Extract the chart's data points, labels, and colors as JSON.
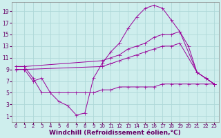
{
  "background_color": "#ceeeed",
  "line_color": "#990099",
  "grid_color": "#aed8d8",
  "xlabel": "Windchill (Refroidissement éolien,°C)",
  "xlabel_fontsize": 6.5,
  "xtick_fontsize": 5.0,
  "ytick_fontsize": 5.5,
  "xlabel_color": "#660066",
  "tick_color": "#660066",
  "xlim": [
    -0.5,
    23.5
  ],
  "ylim": [
    0,
    20.5
  ],
  "yticks": [
    1,
    3,
    5,
    7,
    9,
    11,
    13,
    15,
    17,
    19
  ],
  "xticks": [
    0,
    1,
    2,
    3,
    4,
    5,
    6,
    7,
    8,
    9,
    10,
    11,
    12,
    13,
    14,
    15,
    16,
    17,
    18,
    19,
    20,
    21,
    22,
    23
  ],
  "series": [
    {
      "x": [
        0,
        1,
        2,
        3,
        4,
        5,
        6,
        7,
        8,
        9,
        10,
        11,
        12,
        13,
        14,
        15,
        16,
        17,
        18,
        19,
        20,
        21,
        22,
        23
      ],
      "y": [
        9.5,
        9.5,
        7.5,
        5.0,
        5.0,
        3.5,
        2.8,
        1.2,
        1.5,
        7.5,
        10.0,
        12.0,
        13.5,
        16.0,
        18.0,
        19.5,
        20.0,
        19.5,
        17.5,
        15.5,
        13.0,
        null,
        null,
        null
      ]
    },
    {
      "x": [
        0,
        1,
        2,
        3,
        4,
        5,
        6,
        7,
        8,
        9,
        10,
        11,
        12,
        13,
        14,
        15,
        16,
        17,
        18,
        19,
        20,
        21,
        22,
        23
      ],
      "y": [
        9.5,
        9.5,
        null,
        null,
        null,
        null,
        null,
        null,
        null,
        null,
        10.5,
        11.0,
        11.5,
        12.5,
        13.0,
        13.5,
        14.5,
        15.0,
        15.0,
        15.5,
        null,
        null,
        null,
        null
      ]
    },
    {
      "x": [
        0,
        1,
        2,
        3,
        4,
        5,
        6,
        7,
        8,
        9,
        10,
        11,
        12,
        13,
        14,
        15,
        16,
        17,
        18,
        19,
        20,
        21,
        22,
        23
      ],
      "y": [
        9.0,
        9.0,
        null,
        null,
        null,
        null,
        null,
        null,
        null,
        null,
        9.5,
        10.0,
        10.5,
        11.0,
        11.5,
        12.0,
        12.5,
        13.0,
        13.0,
        13.5,
        null,
        null,
        null,
        null
      ]
    },
    {
      "x": [
        0,
        1,
        2,
        3,
        4,
        5,
        6,
        7,
        8,
        9,
        10,
        11,
        12,
        13,
        14,
        15,
        16,
        17,
        18,
        19,
        20,
        21,
        22,
        23
      ],
      "y": [
        null,
        null,
        7.0,
        7.5,
        5.0,
        5.0,
        4.5,
        3.0,
        1.2,
        1.5,
        null,
        null,
        null,
        null,
        null,
        null,
        null,
        null,
        null,
        null,
        null,
        null,
        null,
        null
      ]
    }
  ],
  "series2": [
    {
      "x": [
        0,
        1,
        2,
        3,
        4,
        5,
        6,
        7,
        8,
        9,
        10,
        11,
        12,
        13,
        14,
        15,
        16,
        17,
        18,
        19,
        20,
        21,
        22,
        23
      ],
      "y": [
        9.5,
        9.5,
        7.5,
        5.0,
        5.0,
        3.5,
        2.8,
        1.2,
        1.5,
        7.5,
        10.0,
        12.0,
        13.5,
        16.0,
        18.0,
        19.5,
        20.0,
        19.5,
        17.5,
        15.5,
        13.0,
        8.5,
        7.5,
        6.5
      ]
    },
    {
      "x": [
        0,
        1,
        10,
        11,
        12,
        13,
        14,
        15,
        16,
        17,
        18,
        19,
        21,
        22,
        23
      ],
      "y": [
        9.5,
        9.5,
        10.5,
        11.0,
        11.5,
        12.5,
        13.0,
        13.5,
        14.5,
        15.0,
        15.0,
        15.5,
        8.5,
        7.5,
        6.5
      ]
    },
    {
      "x": [
        0,
        1,
        10,
        11,
        12,
        13,
        14,
        15,
        16,
        17,
        18,
        19,
        21,
        22,
        23
      ],
      "y": [
        9.0,
        9.0,
        9.5,
        10.0,
        10.5,
        11.0,
        11.5,
        12.0,
        12.5,
        13.0,
        13.0,
        13.5,
        8.5,
        7.5,
        6.5
      ]
    },
    {
      "x": [
        0,
        1,
        2,
        3,
        4,
        5,
        6,
        7,
        8,
        9,
        10,
        11,
        12,
        13,
        14,
        15,
        16,
        17,
        18,
        19,
        20,
        21,
        22,
        23
      ],
      "y": [
        9.0,
        9.0,
        7.0,
        7.5,
        5.0,
        5.0,
        5.0,
        5.0,
        5.0,
        5.0,
        5.5,
        5.5,
        6.0,
        6.0,
        6.0,
        6.0,
        6.0,
        6.5,
        6.5,
        6.5,
        6.5,
        6.5,
        6.5,
        6.5
      ]
    }
  ]
}
